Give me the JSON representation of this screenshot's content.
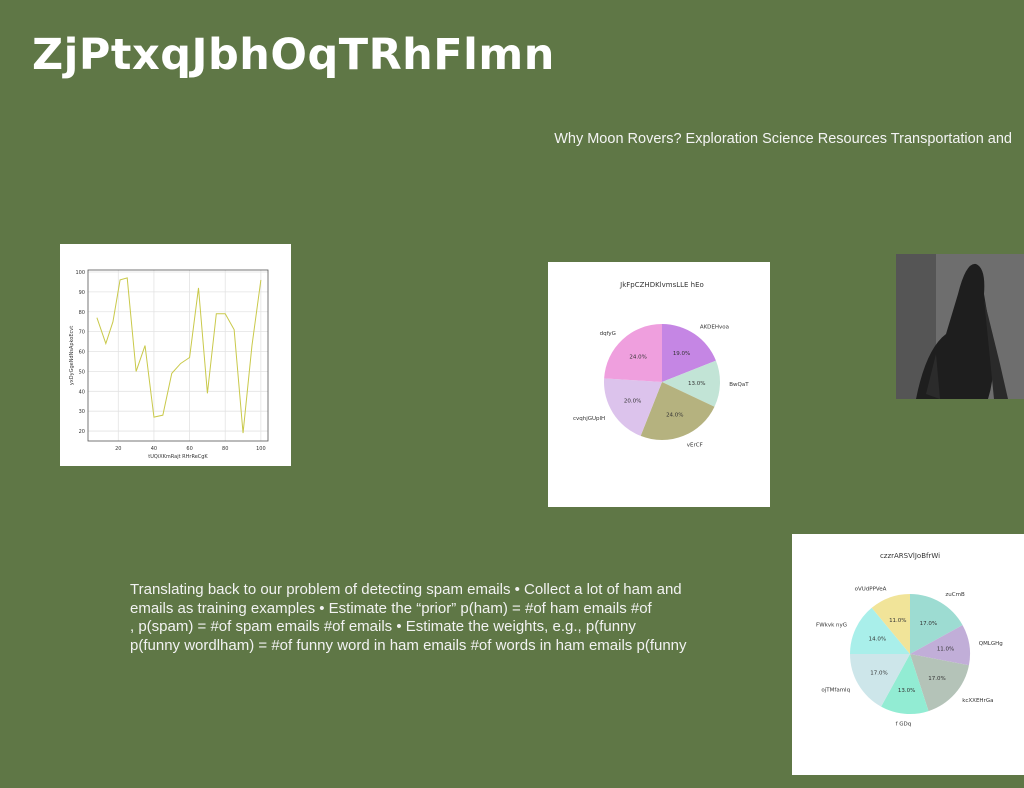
{
  "slide": {
    "title": "ZjPtxqJbhOqTRhFlmn",
    "subtitle": "Why Moon Rovers? Exploration Science Resources Transportation and",
    "body_lines": [
      "Translating back to our problem of detecting spam emails • Collect a lot of ham and",
      "emails as training examples • Estimate the “prior” p(ham) = #of ham emails #of",
      ", p(spam) = #of spam emails #of emails • Estimate the weights, e.g., p(funny",
      "p(funny wordlham) = #of funny word in ham emails #of words in ham emails p(funny"
    ]
  },
  "chart_data": [
    {
      "type": "line",
      "title": "",
      "xlabel": "tUQiXKmRajt RHrReCgK",
      "ylabel": "yxDyGgeNdNsApkoEcvt",
      "xlim": [
        3,
        104
      ],
      "ylim": [
        15,
        101
      ],
      "xticks": [
        "20",
        "40",
        "60",
        "80",
        "100"
      ],
      "yticks": [
        "20",
        "30",
        "40",
        "50",
        "60",
        "70",
        "80",
        "90",
        "100"
      ],
      "grid": true,
      "color": "#c9c94a",
      "x": [
        8,
        13,
        17,
        21,
        25,
        30,
        35,
        40,
        45,
        50,
        55,
        60,
        65,
        70,
        75,
        80,
        85,
        90,
        95,
        100
      ],
      "y": [
        77,
        64,
        75,
        96,
        97,
        50,
        63,
        27,
        28,
        49,
        54,
        57,
        92,
        39,
        79,
        79,
        71,
        19,
        63,
        96
      ]
    },
    {
      "type": "pie",
      "title": "JkFpCZHDKlvmsLLE hEo",
      "labels": [
        "AKDEHvoa",
        "BwQaT",
        "vErCF",
        "cvqhjGUplH",
        "dqfyG"
      ],
      "values": [
        19.0,
        13.0,
        24.0,
        20.0,
        24.0
      ],
      "pct_labels": [
        "19.0%",
        "13.0%",
        "24.0%",
        "20.0%",
        "24.0%"
      ],
      "colors": [
        "#c586e4",
        "#c2e4d6",
        "#b5b27f",
        "#dcc3ec",
        "#ef9fde"
      ]
    },
    {
      "type": "pie",
      "title": "czzrARSVlJoBfrWi",
      "labels": [
        "zuCmB",
        "QMLGHg",
        "kcXXEHrGa",
        "f GDq",
        "ojTMfamlq",
        "FWkvk nyG",
        "oVUdPPVeA"
      ],
      "values": [
        17.0,
        11.0,
        17.0,
        13.0,
        17.0,
        14.0,
        11.0
      ],
      "pct_labels": [
        "17.0%",
        "11.0%",
        "17.0%",
        "13.0%",
        "17.0%",
        "14.0%",
        "11.0%"
      ],
      "colors": [
        "#9ddcd2",
        "#c1aed8",
        "#b4c3b8",
        "#92ecd3",
        "#cde6ea",
        "#a9efea",
        "#f1e499"
      ]
    }
  ]
}
